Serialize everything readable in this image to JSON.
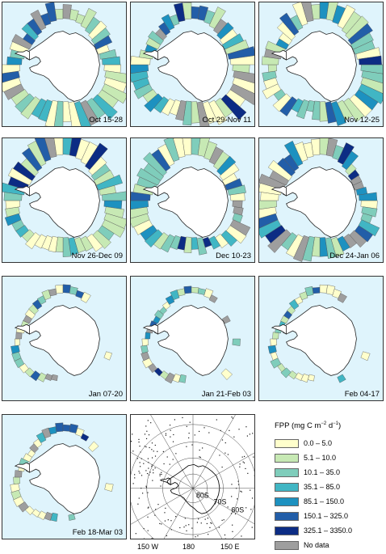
{
  "panels": [
    {
      "label": "Oct 15-28",
      "coverage": "full"
    },
    {
      "label": "Oct 29-Nov 11",
      "coverage": "full"
    },
    {
      "label": "Nov 12-25",
      "coverage": "full"
    },
    {
      "label": "Nov 26-Dec 09",
      "coverage": "full"
    },
    {
      "label": "Dec 10-23",
      "coverage": "full"
    },
    {
      "label": "Dec 24-Jan 06",
      "coverage": "full"
    },
    {
      "label": "Jan 07-20",
      "coverage": "partial"
    },
    {
      "label": "Jan 21-Feb 03",
      "coverage": "partial"
    },
    {
      "label": "Feb 04-17",
      "coverage": "partial"
    },
    {
      "label": "Feb 18-Mar 03",
      "coverage": "partial"
    }
  ],
  "legend": {
    "title": "FPP (mg C m",
    "title_sup": "−2",
    "title_mid": " d",
    "title_sup2": "−1",
    "title_end": ")",
    "items": [
      {
        "label": "0.0 – 5.0",
        "color": "#ffffcc"
      },
      {
        "label": "5.1 – 10.0",
        "color": "#c7e9b4"
      },
      {
        "label": "10.1 – 35.0",
        "color": "#7fcdbb"
      },
      {
        "label": "35.1 – 85.0",
        "color": "#41b6c4"
      },
      {
        "label": "85.1 – 150.0",
        "color": "#1d91c0"
      },
      {
        "label": "150.1 – 325.0",
        "color": "#225ea8"
      },
      {
        "label": "325.1 – 3350.0",
        "color": "#0c2c84"
      },
      {
        "label": "No data",
        "color": "#9e9e9e"
      }
    ]
  },
  "reference_map": {
    "lat_labels": [
      "80S",
      "70S",
      "60S"
    ],
    "lon_labels": [
      "150 W",
      "180",
      "150 E"
    ]
  },
  "colors": {
    "ocean": "#dff4fc",
    "land": "#ffffff",
    "outline": "#222222"
  }
}
